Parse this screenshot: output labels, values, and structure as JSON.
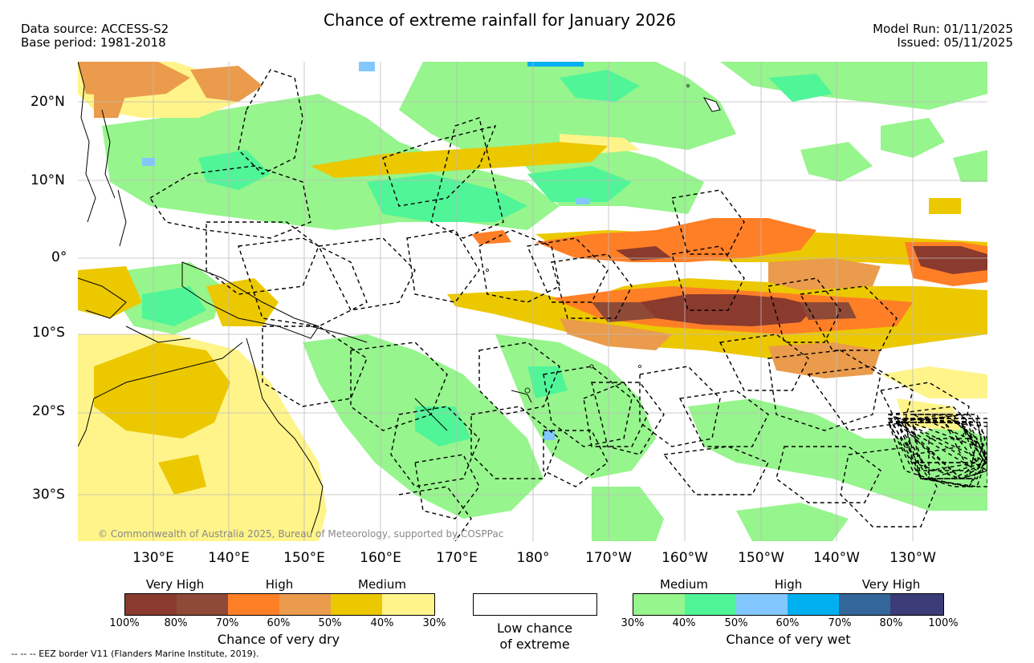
{
  "header": {
    "title": "Chance of extreme rainfall for January 2026",
    "data_source": "Data source: ACCESS-S2",
    "base_period": "Base period: 1981-2018",
    "model_run": "Model Run: 01/11/2025",
    "issued": "Issued: 05/11/2025"
  },
  "map": {
    "lat_labels": [
      "20°N",
      "10°N",
      "0°",
      "10°S",
      "20°S",
      "30°S"
    ],
    "lon_labels": [
      "130°E",
      "140°E",
      "150°E",
      "160°E",
      "170°E",
      "180°",
      "170°W",
      "160°W",
      "150°W",
      "140°W",
      "130°W"
    ],
    "copyright": "© Commonwealth of Australia 2025, Bureau of Meteorology, supported by COSPPac",
    "colors": {
      "dry_very_high_1": "#8b3a2e",
      "dry_very_high_2": "#8e4a36",
      "dry_high_1": "#ff7f27",
      "dry_high_2": "#ea9b4b",
      "dry_medium_1": "#ecc800",
      "dry_medium_2": "#fff48a",
      "wet_medium_1": "#96f58c",
      "wet_medium_2": "#50f598",
      "wet_high_1": "#82c8ff",
      "wet_high_2": "#00b0f0",
      "wet_very_high_1": "#336699",
      "wet_very_high_2": "#3c3c78"
    }
  },
  "legend_dry": {
    "very_high": "Very High",
    "high": "High",
    "medium": "Medium",
    "ticks": [
      "100%",
      "80%",
      "70%",
      "60%",
      "50%",
      "40%",
      "30%"
    ],
    "caption": "Chance of very dry"
  },
  "legend_low": {
    "caption_line1": "Low chance",
    "caption_line2": "of extreme"
  },
  "legend_wet": {
    "medium": "Medium",
    "high": "High",
    "very_high": "Very High",
    "ticks": [
      "30%",
      "40%",
      "50%",
      "60%",
      "70%",
      "80%",
      "100%"
    ],
    "caption": "Chance of very wet"
  },
  "footer": {
    "eez_note": "--  --  -- EEZ border V11 (Flanders Marine Institute, 2019)."
  }
}
